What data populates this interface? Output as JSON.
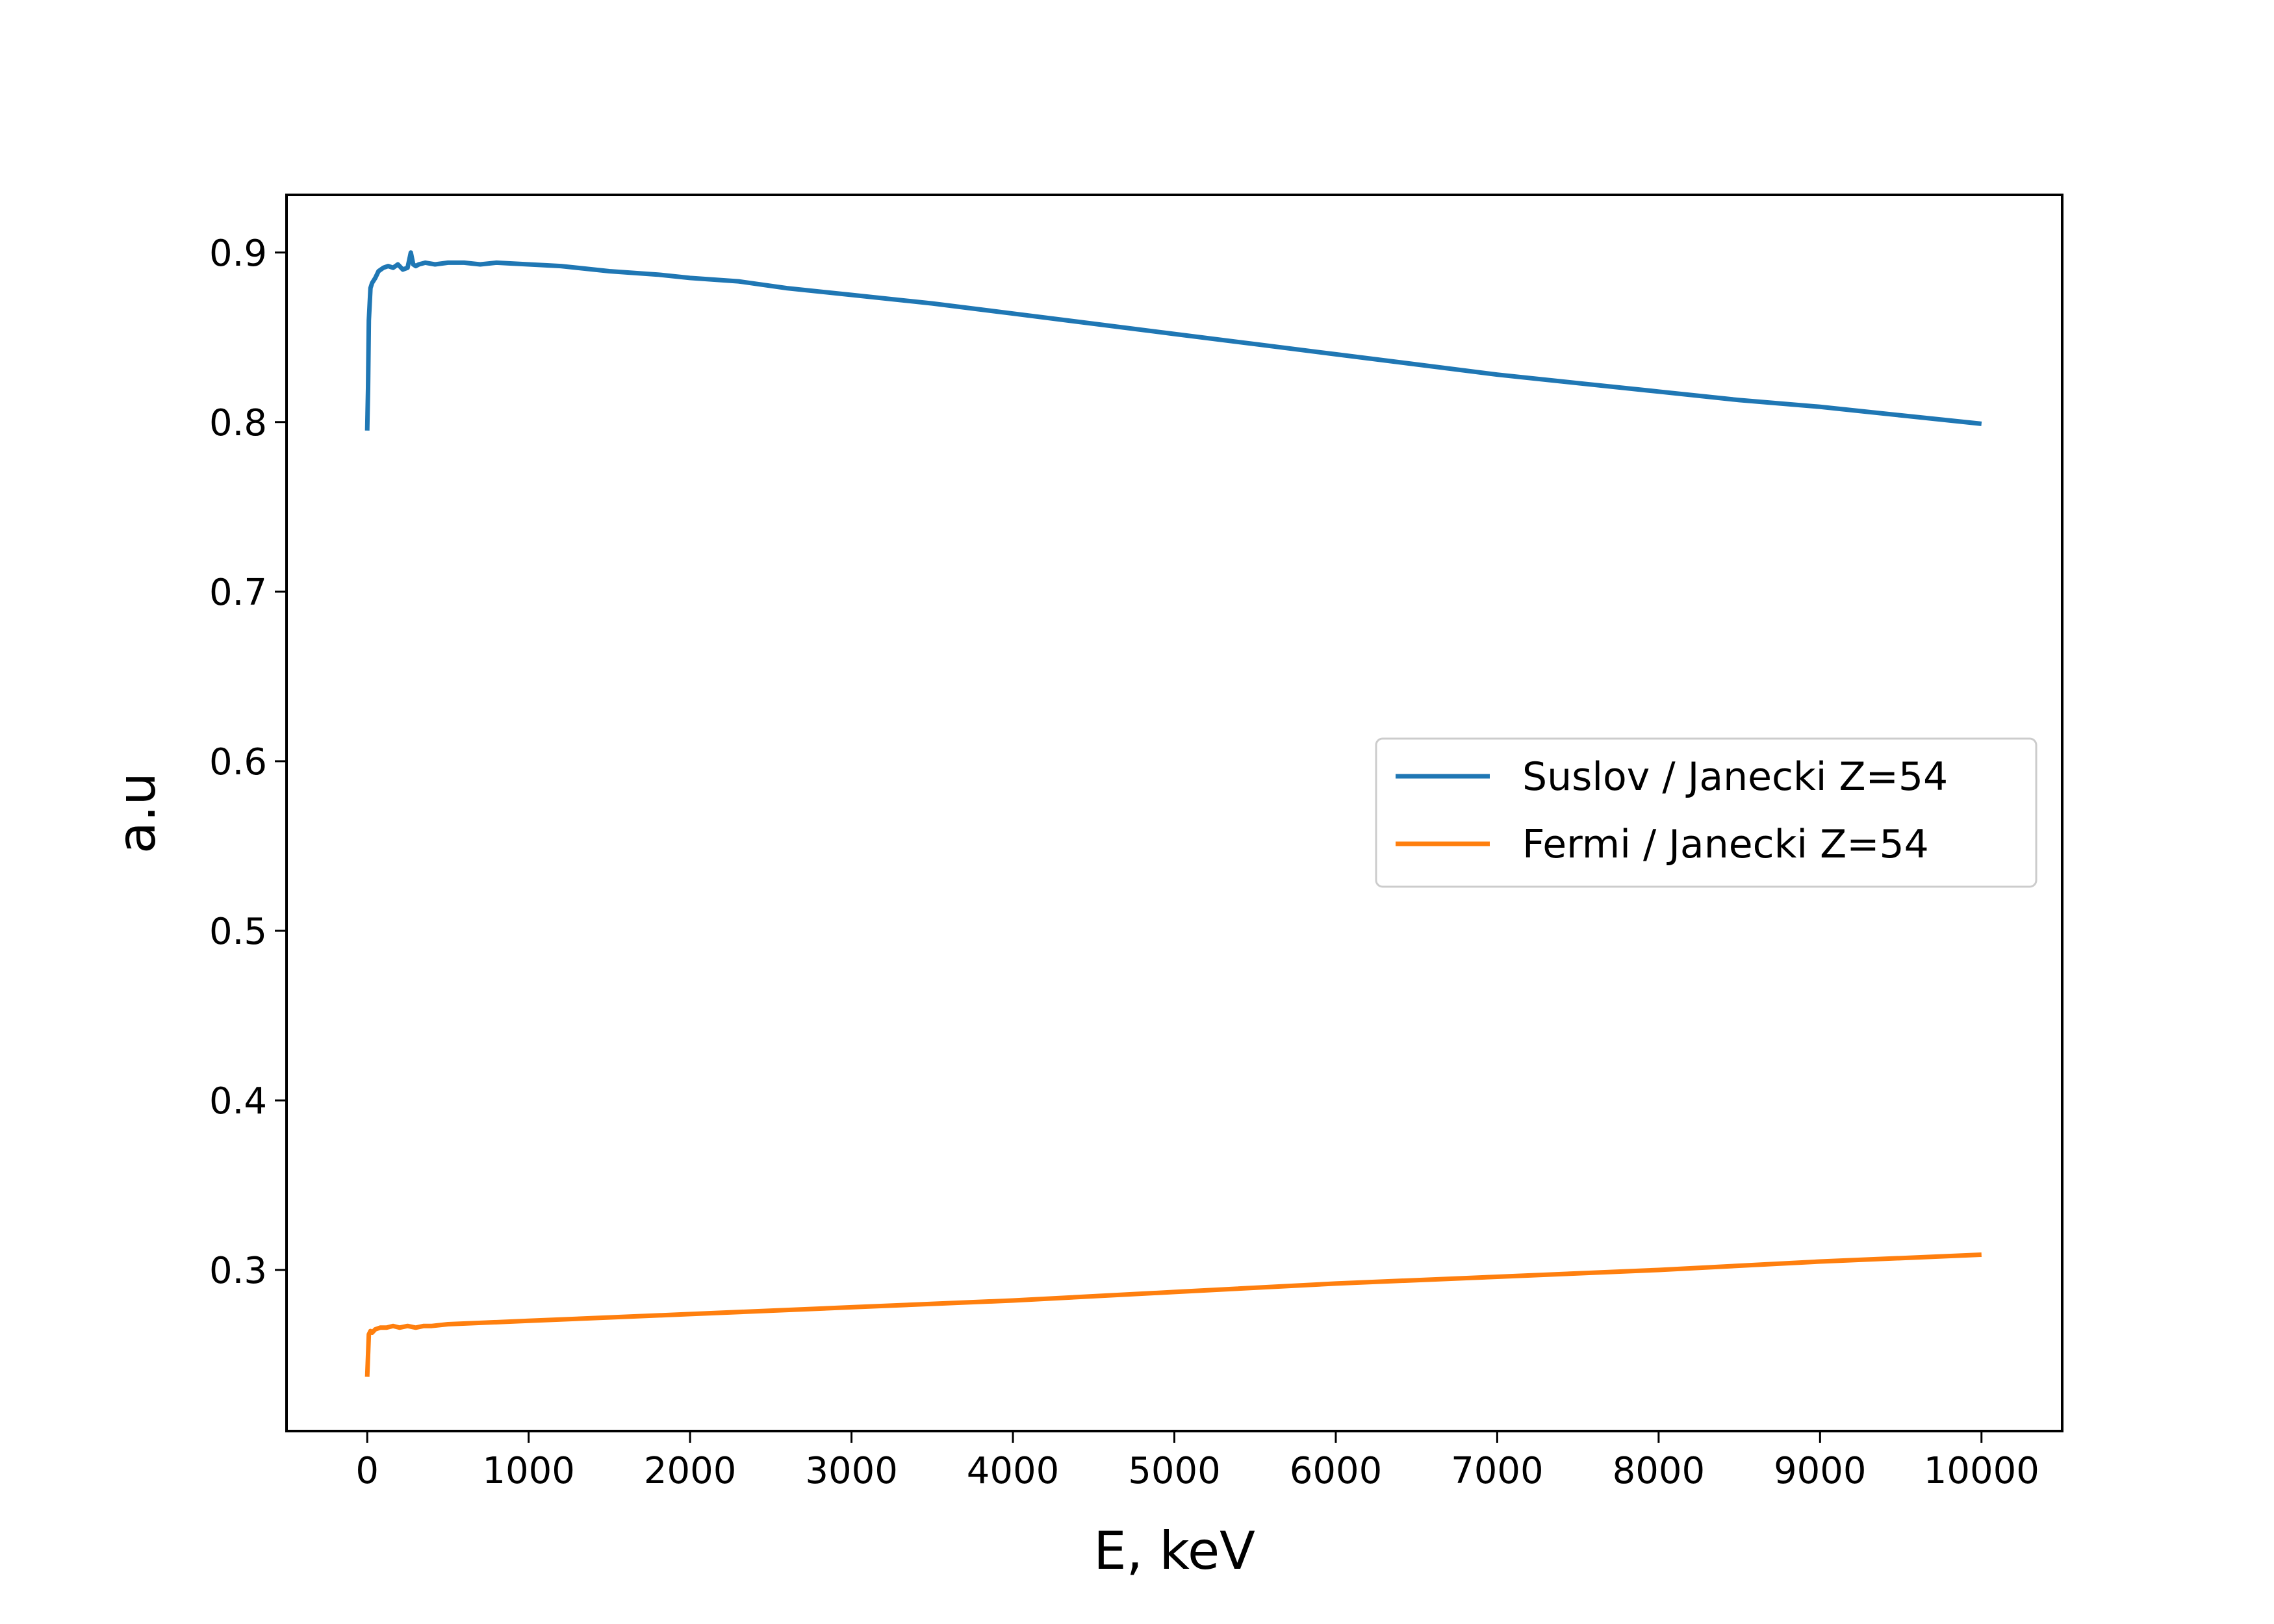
{
  "chart_data": {
    "type": "line",
    "title": "",
    "xlabel": "E, keV",
    "ylabel": "a.u",
    "xlim": [
      -500,
      10500
    ],
    "ylim": [
      0.205,
      0.934
    ],
    "xticks": [
      0,
      1000,
      2000,
      3000,
      4000,
      5000,
      6000,
      7000,
      8000,
      9000,
      10000
    ],
    "yticks": [
      0.3,
      0.4,
      0.5,
      0.6,
      0.7,
      0.8,
      0.9
    ],
    "grid": false,
    "legend_position": "center-right",
    "series": [
      {
        "name": "Suslov / Janecki Z=54",
        "color": "#1f77b4",
        "x": [
          0,
          5,
          10,
          20,
          30,
          50,
          70,
          100,
          130,
          160,
          190,
          220,
          250,
          270,
          285,
          300,
          320,
          360,
          420,
          500,
          600,
          700,
          800,
          1000,
          1200,
          1500,
          1800,
          2000,
          2300,
          2600,
          3000,
          3500,
          4000,
          4500,
          5000,
          5500,
          6000,
          6500,
          7000,
          7500,
          8000,
          8500,
          9000,
          9500,
          10000
        ],
        "y": [
          0.795,
          0.82,
          0.86,
          0.879,
          0.882,
          0.885,
          0.889,
          0.891,
          0.892,
          0.891,
          0.893,
          0.89,
          0.891,
          0.9,
          0.893,
          0.892,
          0.893,
          0.894,
          0.893,
          0.894,
          0.894,
          0.893,
          0.894,
          0.893,
          0.892,
          0.889,
          0.887,
          0.885,
          0.883,
          0.879,
          0.875,
          0.87,
          0.864,
          0.858,
          0.852,
          0.846,
          0.84,
          0.834,
          0.828,
          0.823,
          0.818,
          0.813,
          0.809,
          0.804,
          0.799
        ]
      },
      {
        "name": "Fermi / Janecki Z=54",
        "color": "#ff7f0e",
        "x": [
          0,
          5,
          10,
          20,
          30,
          50,
          80,
          120,
          160,
          200,
          250,
          300,
          350,
          400,
          500,
          1000,
          2000,
          3000,
          4000,
          5000,
          6000,
          7000,
          8000,
          9000,
          10000
        ],
        "y": [
          0.237,
          0.25,
          0.262,
          0.264,
          0.263,
          0.265,
          0.266,
          0.266,
          0.267,
          0.266,
          0.267,
          0.266,
          0.267,
          0.267,
          0.268,
          0.27,
          0.274,
          0.278,
          0.282,
          0.287,
          0.292,
          0.296,
          0.3,
          0.305,
          0.309
        ]
      }
    ]
  }
}
